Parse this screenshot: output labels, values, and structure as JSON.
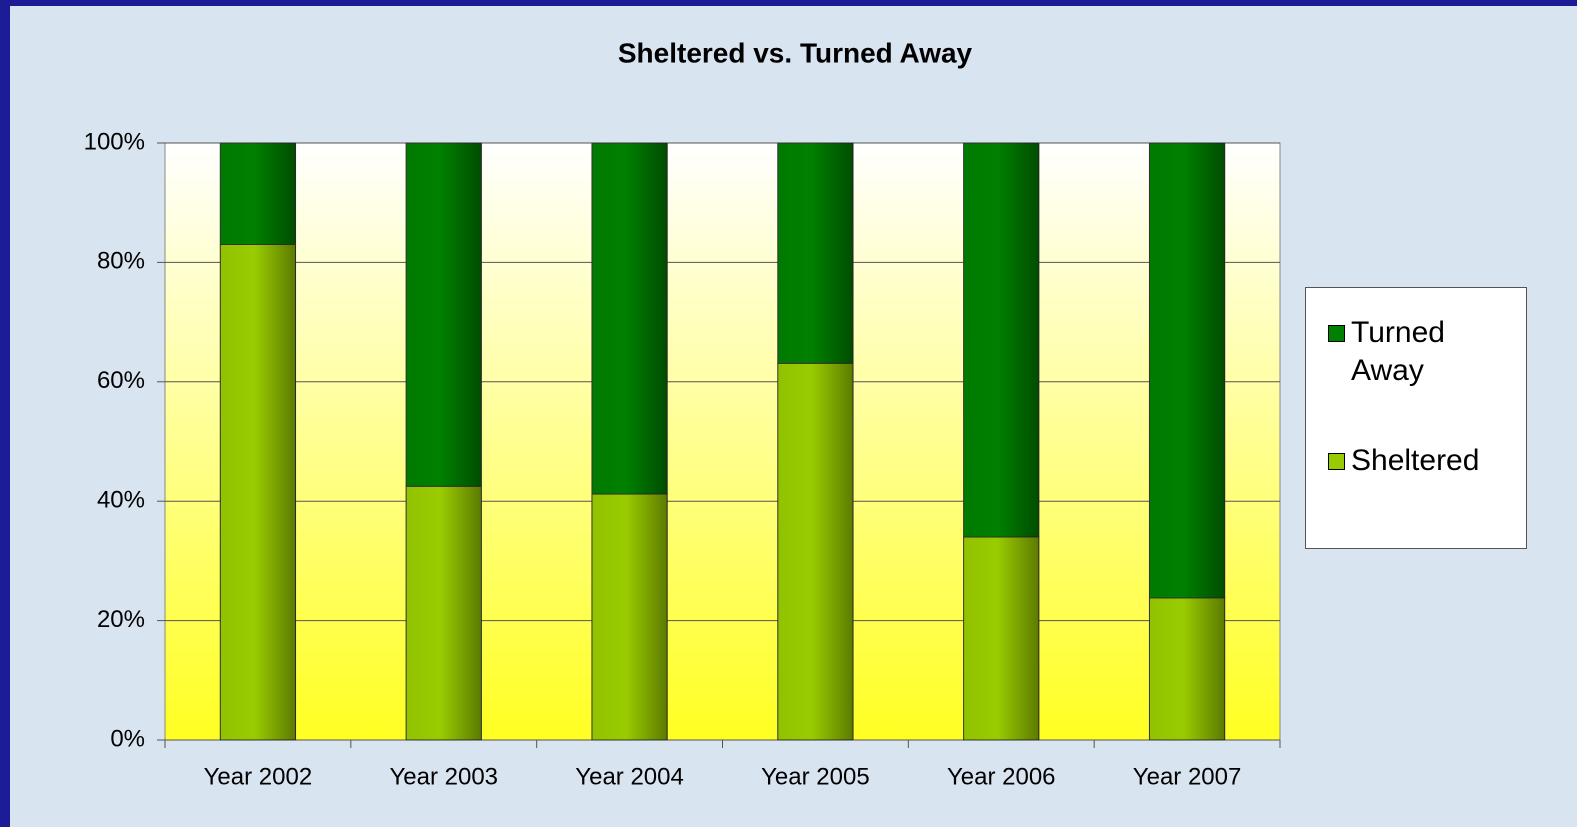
{
  "chart_data": {
    "type": "stacked_bar",
    "title": "Sheltered vs. Turned Away",
    "categories": [
      "Year 2002",
      "Year 2003",
      "Year 2004",
      "Year 2005",
      "Year 2006",
      "Year 2007"
    ],
    "series": [
      {
        "name": "Sheltered",
        "color": "#99cc00",
        "values": [
          83,
          42.5,
          41.2,
          63.1,
          34,
          23.8
        ]
      },
      {
        "name": "Turned Away",
        "color": "#008000",
        "values": [
          17,
          57.5,
          58.8,
          36.9,
          66,
          76.2
        ]
      }
    ],
    "ylim": [
      0,
      100
    ],
    "yticks": [
      {
        "value": 0,
        "label": "0%"
      },
      {
        "value": 20,
        "label": "20%"
      },
      {
        "value": 40,
        "label": "40%"
      },
      {
        "value": 60,
        "label": "60%"
      },
      {
        "value": 80,
        "label": "80%"
      },
      {
        "value": 100,
        "label": "100%"
      }
    ],
    "grid": true,
    "legend": "right"
  }
}
